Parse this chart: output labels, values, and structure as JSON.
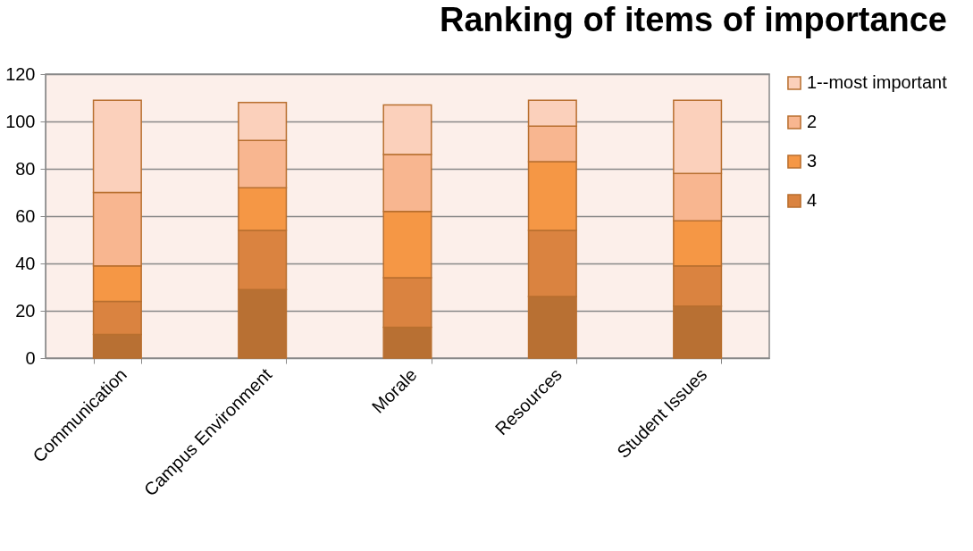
{
  "chart_data": {
    "type": "bar",
    "title": "Ranking of items of importance",
    "stacked": true,
    "categories": [
      "Communication",
      "Campus Environment",
      "Morale",
      "Resources",
      "Student Issues"
    ],
    "series": [
      {
        "color": "#b87033",
        "values": [
          10,
          29,
          13,
          26,
          22
        ]
      },
      {
        "name": "4",
        "color": "#da8340",
        "values": [
          14,
          25,
          21,
          28,
          17
        ]
      },
      {
        "name": "3",
        "color": "#f59745",
        "values": [
          15,
          18,
          28,
          29,
          19
        ]
      },
      {
        "name": "2",
        "color": "#f8b690",
        "values": [
          31,
          20,
          24,
          15,
          20
        ]
      },
      {
        "name": "1--most important",
        "color": "#fbd0bb",
        "values": [
          39,
          16,
          21,
          11,
          31
        ]
      }
    ],
    "ylim": [
      0,
      120
    ],
    "yticks": [
      0,
      20,
      40,
      60,
      80,
      100,
      120
    ],
    "grid": "y",
    "legend": "right"
  }
}
